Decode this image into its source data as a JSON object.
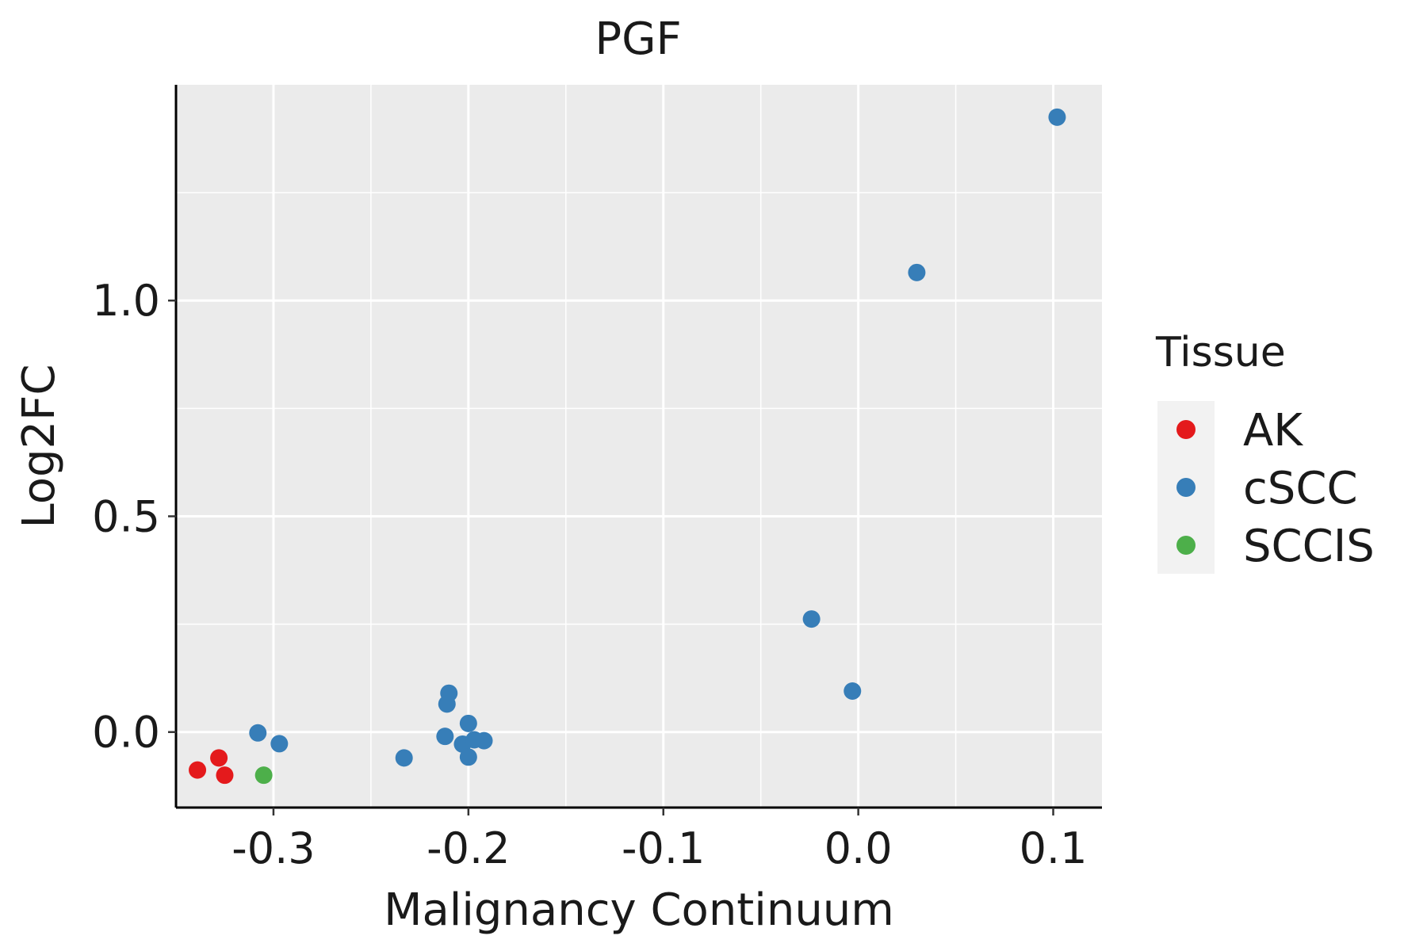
{
  "chart_data": {
    "type": "scatter",
    "title": "PGF",
    "xlabel": "Malignancy Continuum",
    "ylabel": "Log2FC",
    "xlim": [
      -0.35,
      0.125
    ],
    "ylim": [
      -0.175,
      1.5
    ],
    "x_ticks": [
      {
        "value": -0.3,
        "label": "-0.3"
      },
      {
        "value": -0.2,
        "label": "-0.2"
      },
      {
        "value": -0.1,
        "label": "-0.1"
      },
      {
        "value": 0.0,
        "label": "0.0"
      },
      {
        "value": 0.1,
        "label": "0.1"
      }
    ],
    "y_ticks": [
      {
        "value": 0.0,
        "label": "0.0"
      },
      {
        "value": 0.5,
        "label": "0.5"
      },
      {
        "value": 1.0,
        "label": "1.0"
      }
    ],
    "grid": true,
    "legend": {
      "title": "Tissue",
      "position": "right"
    },
    "series": [
      {
        "name": "AK",
        "color": "#e41a1c",
        "points": [
          {
            "x": -0.339,
            "y": -0.088
          },
          {
            "x": -0.328,
            "y": -0.06
          },
          {
            "x": -0.325,
            "y": -0.1
          }
        ]
      },
      {
        "name": "cSCC",
        "color": "#377eb8",
        "points": [
          {
            "x": -0.308,
            "y": -0.002
          },
          {
            "x": -0.297,
            "y": -0.027
          },
          {
            "x": -0.233,
            "y": -0.06
          },
          {
            "x": -0.21,
            "y": 0.09
          },
          {
            "x": -0.211,
            "y": 0.065
          },
          {
            "x": -0.212,
            "y": -0.01
          },
          {
            "x": -0.2,
            "y": 0.02
          },
          {
            "x": -0.203,
            "y": -0.028
          },
          {
            "x": -0.2,
            "y": -0.058
          },
          {
            "x": -0.197,
            "y": -0.018
          },
          {
            "x": -0.192,
            "y": -0.02
          },
          {
            "x": -0.024,
            "y": 0.262
          },
          {
            "x": -0.003,
            "y": 0.095
          },
          {
            "x": 0.03,
            "y": 1.065
          },
          {
            "x": 0.102,
            "y": 1.425
          }
        ]
      },
      {
        "name": "SCCIS",
        "color": "#4daf4a",
        "points": [
          {
            "x": -0.305,
            "y": -0.1
          }
        ]
      }
    ]
  }
}
